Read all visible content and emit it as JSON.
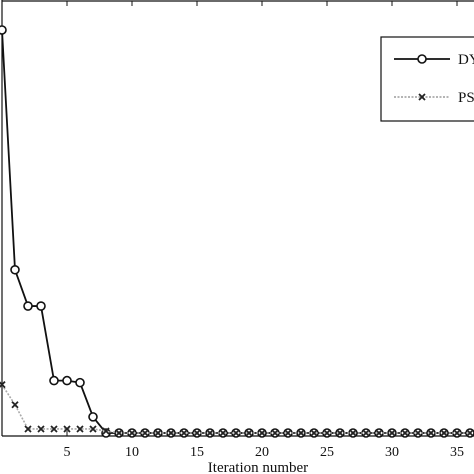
{
  "chart_data": {
    "type": "line",
    "title": "",
    "xlabel": "Iteration number",
    "ylabel": "",
    "xlim": [
      0,
      36
    ],
    "ylim": [
      0,
      1
    ],
    "x_ticks": [
      5,
      10,
      15,
      20,
      25,
      30,
      35
    ],
    "x_tick_labels": [
      "5",
      "10",
      "15",
      "20",
      "25",
      "30",
      "35"
    ],
    "grid": false,
    "legend_position": "top-right",
    "series": [
      {
        "name": "DY",
        "color": "#111111",
        "marker": "circle",
        "x": [
          0,
          1,
          2,
          3,
          4,
          5,
          6,
          7,
          8,
          9,
          10,
          11,
          12,
          13,
          14,
          15,
          16,
          17,
          18,
          19,
          20,
          21,
          22,
          23,
          24,
          25,
          26,
          27,
          28,
          29,
          30,
          31,
          32,
          33,
          34,
          35,
          36
        ],
        "y": [
          1.0,
          0.405,
          0.315,
          0.315,
          0.13,
          0.13,
          0.125,
          0.04,
          0,
          0,
          0,
          0,
          0,
          0,
          0,
          0,
          0,
          0,
          0,
          0,
          0,
          0,
          0,
          0,
          0,
          0,
          0,
          0,
          0,
          0,
          0,
          0,
          0,
          0,
          0,
          0,
          0
        ]
      },
      {
        "name": "PS",
        "color": "#aaaaaa",
        "marker": "x",
        "x": [
          0,
          1,
          2,
          3,
          4,
          5,
          6,
          7,
          8,
          9,
          10,
          11,
          12,
          13,
          14,
          15,
          16,
          17,
          18,
          19,
          20,
          21,
          22,
          23,
          24,
          25,
          26,
          27,
          28,
          29,
          30,
          31,
          32,
          33,
          34,
          35,
          36
        ],
        "y": [
          0.12,
          0.07,
          0.01,
          0.01,
          0.01,
          0.01,
          0.01,
          0.01,
          0.005,
          0,
          0,
          0,
          0,
          0,
          0,
          0,
          0,
          0,
          0,
          0,
          0,
          0,
          0,
          0,
          0,
          0,
          0,
          0,
          0,
          0,
          0,
          0,
          0,
          0,
          0,
          0,
          0
        ]
      }
    ]
  }
}
